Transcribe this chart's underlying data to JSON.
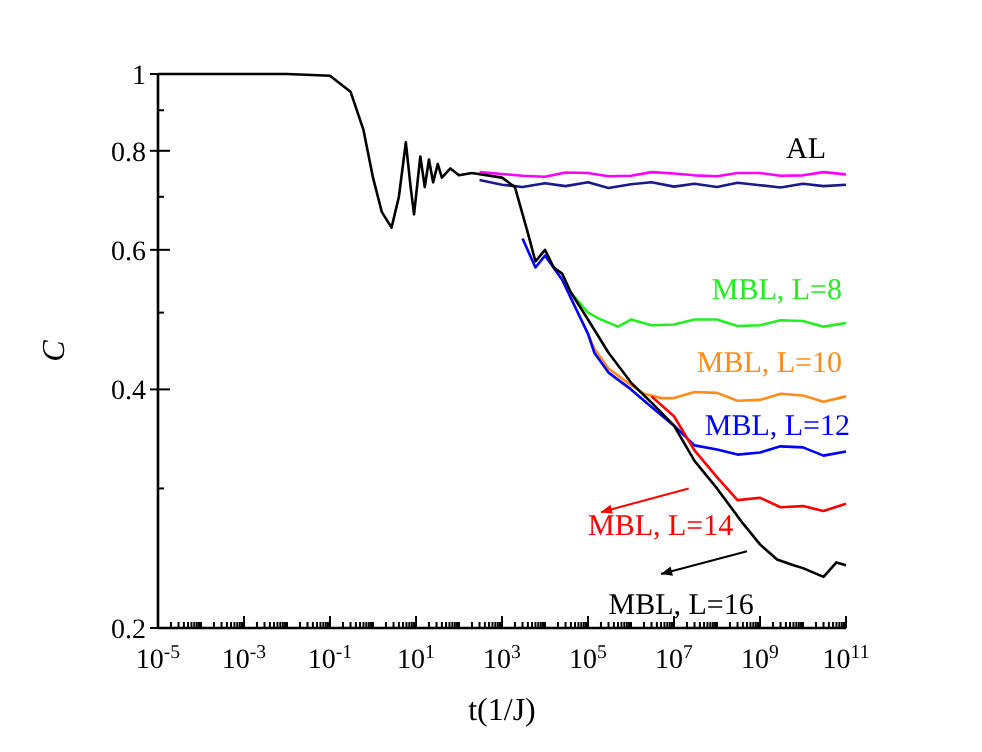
{
  "chart_data": {
    "type": "line",
    "xlabel": "t(1/J)",
    "ylabel": "C",
    "log": "xy",
    "grid": false,
    "legend": "bottom right",
    "line_style": "solid",
    "xlim": [
      1e-05,
      100000000000.0
    ],
    "ylim": [
      0.2,
      1
    ],
    "xticks": [
      {
        "value": 1e-05,
        "label": "10$^{-5}$"
      },
      {
        "value": 0.001,
        "label": "10$^{-3}$"
      },
      {
        "value": 0.1,
        "label": "10$^{-1}$"
      },
      {
        "value": 10,
        "label": "10$^{1}$"
      },
      {
        "value": 1000,
        "label": "10$^{3}$"
      },
      {
        "value": 100000.0,
        "label": "10$^{5}$"
      },
      {
        "value": 10000000.0,
        "label": "10$^{7}$"
      },
      {
        "value": 1000000000.0,
        "label": "10$^{9}$"
      },
      {
        "value": 100000000000.0,
        "label": "10$^{11}$"
      }
    ],
    "yticks": [
      0.2,
      0.4,
      0.6,
      0.8,
      1
    ],
    "annotations": [
      "AL"
    ],
    "series": [
      {
        "color": "#ff00ff",
        "x": [
          300,
          1000,
          3000,
          10000.0,
          30000.0,
          100000.0,
          300000.0,
          1000000.0,
          3000000.0,
          10000000.0,
          30000000.0,
          100000000.0,
          300000000.0,
          1000000000.0,
          3000000000.0,
          10000000000.0,
          30000000000.0,
          100000000000.0
        ],
        "values": [
          0.752,
          0.748,
          0.744,
          0.742,
          0.751,
          0.75,
          0.743,
          0.744,
          0.752,
          0.749,
          0.745,
          0.743,
          0.75,
          0.75,
          0.744,
          0.745,
          0.752,
          0.747
        ]
      },
      {
        "color": "#1a1a8c",
        "x": [
          300,
          1000,
          3000,
          10000.0,
          30000.0,
          100000.0,
          300000.0,
          1000000.0,
          3000000.0,
          10000000.0,
          30000000.0,
          100000000.0,
          300000000.0,
          1000000000.0,
          3000000000.0,
          10000000000.0,
          30000000000.0,
          100000000000.0
        ],
        "values": [
          0.735,
          0.725,
          0.72,
          0.728,
          0.722,
          0.73,
          0.718,
          0.726,
          0.73,
          0.721,
          0.727,
          0.72,
          0.729,
          0.724,
          0.719,
          0.727,
          0.722,
          0.725
        ]
      },
      {
        "name": "MBL, L=8",
        "color": "#22ee22",
        "x": [
          40000.0,
          100000.0,
          200000.0,
          500000.0,
          1000000.0,
          3000000.0,
          10000000.0,
          30000000.0,
          100000000.0,
          300000000.0,
          1000000000.0,
          3000000000.0,
          10000000000.0,
          30000000000.0,
          100000000000.0
        ],
        "values": [
          0.53,
          0.5,
          0.49,
          0.48,
          0.49,
          0.482,
          0.483,
          0.49,
          0.49,
          0.481,
          0.482,
          0.489,
          0.488,
          0.48,
          0.485
        ]
      },
      {
        "name": "MBL, L=10",
        "color": "#ff8c1a",
        "x": [
          100000.0,
          140000.0,
          300000.0,
          1000000.0,
          2000000.0,
          5000000.0,
          10000000.0,
          30000000.0,
          100000000.0,
          300000000.0,
          1000000000.0,
          3000000000.0,
          10000000000.0,
          30000000000.0,
          100000000000.0
        ],
        "values": [
          0.47,
          0.45,
          0.425,
          0.405,
          0.395,
          0.39,
          0.39,
          0.397,
          0.396,
          0.387,
          0.388,
          0.395,
          0.393,
          0.386,
          0.392
        ]
      },
      {
        "name": "MBL, L=12",
        "color": "#0000ff",
        "x": [
          3000.0,
          6000.0,
          10000.0,
          25000.0,
          100000.0,
          140000.0,
          300000.0,
          1000000.0,
          3000000.0,
          10000000.0,
          30000000.0,
          100000000.0,
          300000000.0,
          1000000000.0,
          3000000000.0,
          10000000000.0,
          30000000000.0,
          100000000000.0
        ],
        "values": [
          0.62,
          0.57,
          0.59,
          0.55,
          0.47,
          0.445,
          0.42,
          0.4,
          0.38,
          0.36,
          0.34,
          0.336,
          0.331,
          0.333,
          0.339,
          0.338,
          0.33,
          0.334
        ]
      },
      {
        "name": "MBL, L=14",
        "color": "#ff0000",
        "x": [
          3000000.0,
          10000000.0,
          30000000.0,
          100000000.0,
          300000000.0,
          1000000000.0,
          3000000000.0,
          10000000000.0,
          30000000000.0,
          100000000000.0
        ],
        "values": [
          0.392,
          0.37,
          0.335,
          0.31,
          0.29,
          0.292,
          0.284,
          0.285,
          0.281,
          0.287
        ]
      },
      {
        "name": "MBL, L=16",
        "color": "#000000",
        "x": [
          1e-05,
          0.01,
          0.1,
          0.3,
          0.6,
          1,
          1.6,
          2.7,
          4,
          5.8,
          7.5,
          9,
          12.6,
          16,
          20,
          25,
          32,
          40,
          63,
          100,
          200,
          1000,
          2000,
          4000,
          6000,
          10000.0,
          16000.0,
          25000.0,
          40000.0,
          100000.0,
          300000.0,
          1000000.0,
          3000000.0,
          10000000.0,
          30000000.0,
          100000000.0,
          400000000.0,
          1000000000.0,
          2500000000.0,
          6000000000.0,
          10000000000.0,
          30000000000.0,
          60000000000.0,
          100000000000.0
        ],
        "values": [
          1,
          1,
          0.995,
          0.95,
          0.85,
          0.74,
          0.67,
          0.64,
          0.7,
          0.82,
          0.72,
          0.665,
          0.787,
          0.72,
          0.78,
          0.73,
          0.77,
          0.74,
          0.76,
          0.745,
          0.75,
          0.74,
          0.72,
          0.63,
          0.58,
          0.6,
          0.57,
          0.56,
          0.53,
          0.49,
          0.445,
          0.408,
          0.385,
          0.36,
          0.325,
          0.3,
          0.271,
          0.255,
          0.244,
          0.24,
          0.238,
          0.232,
          0.242,
          0.24
        ]
      }
    ]
  }
}
